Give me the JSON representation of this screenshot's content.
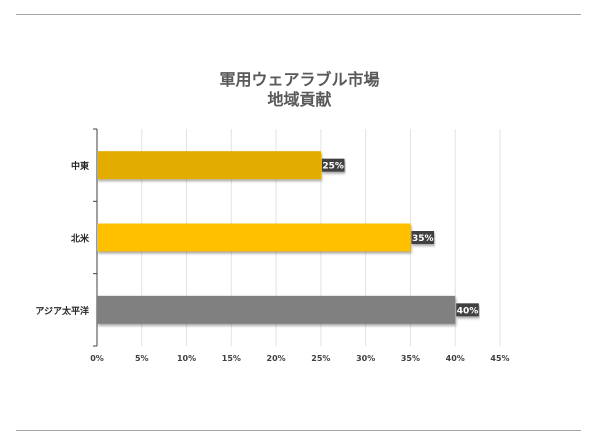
{
  "chart_data": {
    "type": "bar",
    "orientation": "horizontal",
    "title_lines": [
      "軍用ウェアラブル市場",
      "地域貢献"
    ],
    "categories": [
      "中東",
      "北米",
      "アジア太平洋"
    ],
    "values": [
      25,
      35,
      40
    ],
    "data_labels": [
      "25%",
      "35%",
      "40%"
    ],
    "colors": [
      "#e2ac00",
      "#ffc000",
      "#808080"
    ],
    "xlim": [
      0,
      45
    ],
    "x_ticks": [
      0,
      5,
      10,
      15,
      20,
      25,
      30,
      35,
      40,
      45
    ],
    "x_tick_labels": [
      "0%",
      "5%",
      "10%",
      "15%",
      "20%",
      "25%",
      "30%",
      "35%",
      "40%",
      "45%"
    ],
    "grid": true,
    "legend": "none",
    "xlabel": "",
    "ylabel": ""
  }
}
